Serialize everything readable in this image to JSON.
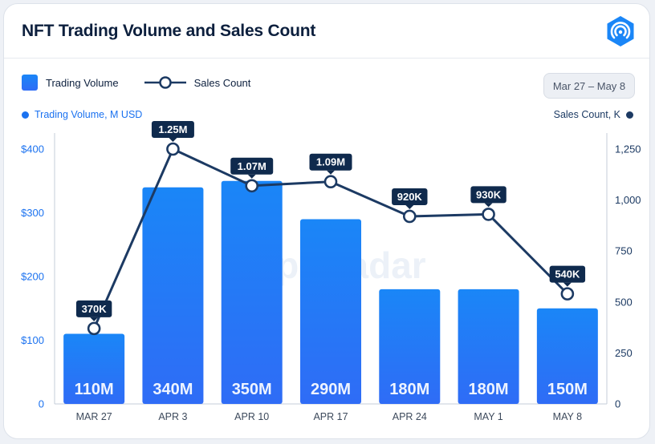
{
  "header": {
    "title": "NFT Trading Volume and Sales Count",
    "logo_icon": "dappradar-logo-icon"
  },
  "legend": {
    "bar_label": "Trading Volume",
    "line_label": "Sales Count"
  },
  "date_range": "Mar 27 – May 8",
  "axis_captions": {
    "left": "Trading Volume, M USD",
    "right": "Sales Count, K"
  },
  "watermark": "DappRadar",
  "colors": {
    "bar_top": "#1a86f7",
    "bar_bottom": "#2f6cf6",
    "line": "#1c3a63",
    "label_bg": "#0f2a4d",
    "left_axis": "#1b72f0",
    "right_axis": "#1c3a63"
  },
  "chart_data": {
    "type": "bar",
    "title": "NFT Trading Volume and Sales Count",
    "categories": [
      "MAR 27",
      "APR 3",
      "APR 10",
      "APR 17",
      "APR 24",
      "MAY 1",
      "MAY 8"
    ],
    "series": [
      {
        "name": "Trading Volume",
        "type": "bar",
        "axis": "left",
        "unit": "M USD",
        "values": [
          110,
          340,
          350,
          290,
          180,
          180,
          150
        ],
        "labels": [
          "110M",
          "340M",
          "350M",
          "290M",
          "180M",
          "180M",
          "150M"
        ]
      },
      {
        "name": "Sales Count",
        "type": "line",
        "axis": "right",
        "unit": "K",
        "values": [
          370,
          1250,
          1070,
          1090,
          920,
          930,
          540
        ],
        "labels": [
          "370K",
          "1.25M",
          "1.07M",
          "1.09M",
          "920K",
          "930K",
          "540K"
        ]
      }
    ],
    "y_left": {
      "min": 0,
      "max": 400,
      "ticks": [
        0,
        100,
        200,
        300,
        400
      ],
      "tick_labels": [
        "0",
        "$100",
        "$200",
        "$300",
        "$400"
      ]
    },
    "y_right": {
      "min": 0,
      "max": 1250,
      "ticks": [
        0,
        250,
        500,
        750,
        1000,
        1250
      ],
      "tick_labels": [
        "0",
        "250",
        "500",
        "750",
        "1,000",
        "1,250"
      ]
    },
    "grid": false,
    "legend_position": "top-left"
  }
}
